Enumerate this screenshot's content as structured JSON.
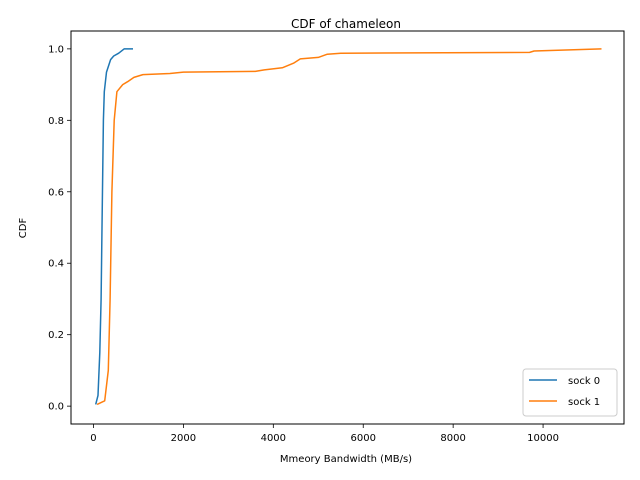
{
  "chart_data": {
    "type": "line",
    "title": "CDF of chameleon",
    "xlabel": "Mmeory Bandwidth (MB/s)",
    "ylabel": "CDF",
    "xlim": [
      -500,
      11800
    ],
    "ylim": [
      -0.05,
      1.05
    ],
    "xticks": [
      "0",
      "2000",
      "4000",
      "6000",
      "8000",
      "10000"
    ],
    "yticks": [
      "0.0",
      "0.2",
      "0.4",
      "0.6",
      "0.8",
      "1.0"
    ],
    "grid": false,
    "legend_position": "lower-right",
    "series": [
      {
        "name": "sock 0",
        "color": "#1f77b4",
        "points": [
          [
            50,
            0.005
          ],
          [
            100,
            0.03
          ],
          [
            140,
            0.15
          ],
          [
            170,
            0.3
          ],
          [
            190,
            0.5
          ],
          [
            205,
            0.65
          ],
          [
            220,
            0.8
          ],
          [
            240,
            0.88
          ],
          [
            290,
            0.935
          ],
          [
            380,
            0.97
          ],
          [
            450,
            0.98
          ],
          [
            560,
            0.988
          ],
          [
            680,
            1.0
          ],
          [
            880,
            1.0
          ]
        ]
      },
      {
        "name": "sock 1",
        "color": "#ff7f0e",
        "points": [
          [
            80,
            0.005
          ],
          [
            250,
            0.015
          ],
          [
            330,
            0.1
          ],
          [
            370,
            0.3
          ],
          [
            410,
            0.6
          ],
          [
            460,
            0.8
          ],
          [
            520,
            0.88
          ],
          [
            650,
            0.9
          ],
          [
            760,
            0.908
          ],
          [
            900,
            0.92
          ],
          [
            1100,
            0.928
          ],
          [
            1700,
            0.931
          ],
          [
            2000,
            0.935
          ],
          [
            3600,
            0.937
          ],
          [
            3800,
            0.941
          ],
          [
            4200,
            0.947
          ],
          [
            4450,
            0.96
          ],
          [
            4600,
            0.972
          ],
          [
            5000,
            0.976
          ],
          [
            5200,
            0.985
          ],
          [
            5500,
            0.988
          ],
          [
            9700,
            0.99
          ],
          [
            9800,
            0.994
          ],
          [
            11300,
            1.0
          ]
        ]
      }
    ]
  }
}
